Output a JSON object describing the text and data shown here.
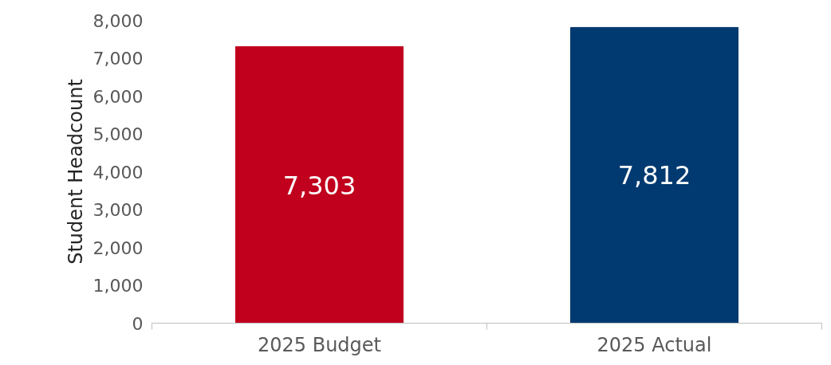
{
  "chart_data": {
    "type": "bar",
    "ylabel": "Student Headcount",
    "categories": [
      "2025 Budget",
      "2025 Actual"
    ],
    "values": [
      7303,
      7812
    ],
    "value_labels": [
      "7,303",
      "7,812"
    ],
    "colors": [
      "#c0001d",
      "#003a70"
    ],
    "ylim": [
      0,
      8000
    ],
    "yticks": [
      0,
      {
        "value": 1000,
        "label": "1,000"
      },
      {
        "value": 2000,
        "label": "2,000"
      },
      {
        "value": 3000,
        "label": "3,000"
      },
      {
        "value": 4000,
        "label": "4,000"
      },
      {
        "value": 5000,
        "label": "5,000"
      },
      {
        "value": 6000,
        "label": "6,000"
      },
      {
        "value": 7000,
        "label": "7,000"
      },
      {
        "value": 8000,
        "label": "8,000"
      }
    ],
    "grid": false
  }
}
